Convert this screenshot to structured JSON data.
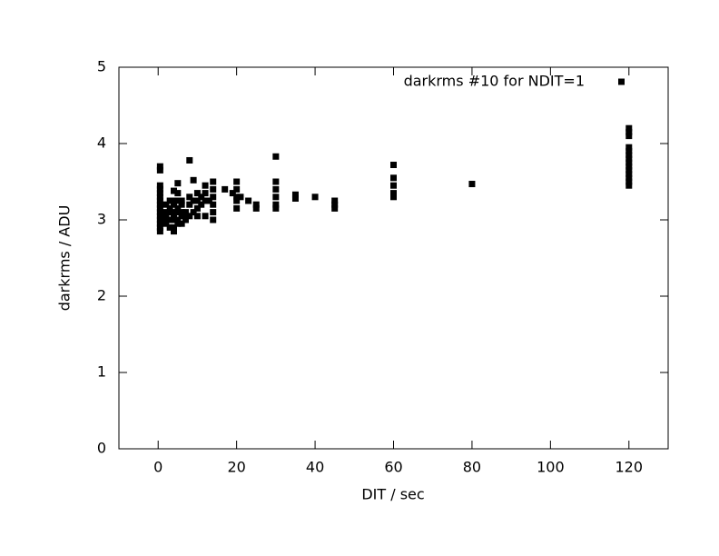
{
  "chart_data": {
    "type": "scatter",
    "xlabel": "DIT / sec",
    "ylabel": "darkrms / ADU",
    "xlim": [
      -10,
      130
    ],
    "xticks": [
      0,
      20,
      40,
      60,
      80,
      100,
      120
    ],
    "ylim": [
      0,
      5
    ],
    "yticks": [
      0,
      1,
      2,
      3,
      4,
      5
    ],
    "legend": "top-right",
    "x": [
      0.5,
      0.5,
      0.5,
      0.5,
      0.5,
      0.5,
      0.5,
      0.5,
      0.5,
      0.5,
      0.5,
      0.5,
      0.5,
      0.5,
      0.5,
      2,
      2,
      2,
      2,
      2,
      3,
      3,
      3,
      3,
      3,
      4,
      4,
      4,
      4,
      4,
      4,
      4,
      4,
      5,
      5,
      5,
      5,
      5,
      5,
      5,
      6,
      6,
      6,
      6,
      6,
      7,
      7,
      7,
      8,
      8,
      8,
      8,
      9,
      9,
      9,
      10,
      10,
      10,
      10,
      11,
      11,
      12,
      12,
      12,
      12,
      13,
      14,
      14,
      14,
      14,
      14,
      14,
      17,
      19,
      20,
      20,
      20,
      20,
      20,
      21,
      23,
      25,
      25,
      30,
      30,
      30,
      30,
      30,
      30,
      35,
      35,
      40,
      45,
      45,
      45,
      60,
      60,
      60,
      60,
      60,
      80,
      120,
      120,
      120,
      120,
      120,
      120,
      120,
      120,
      120,
      120,
      120,
      120,
      120,
      120
    ],
    "series": [
      {
        "name": "darkrms #10 for NDIT=1",
        "color": "#000000",
        "values": [
          2.85,
          2.9,
          2.95,
          3.0,
          3.05,
          3.1,
          3.15,
          3.2,
          3.25,
          3.3,
          3.35,
          3.4,
          3.45,
          3.65,
          3.7,
          2.95,
          3.0,
          3.05,
          3.1,
          3.2,
          2.9,
          3.0,
          3.1,
          3.15,
          3.25,
          2.85,
          2.9,
          3.0,
          3.05,
          3.1,
          3.2,
          3.25,
          3.38,
          2.95,
          3.0,
          3.1,
          3.15,
          3.25,
          3.35,
          3.48,
          2.95,
          3.05,
          3.1,
          3.2,
          3.25,
          3.0,
          3.05,
          3.1,
          3.05,
          3.2,
          3.3,
          3.78,
          3.1,
          3.25,
          3.52,
          3.05,
          3.15,
          3.25,
          3.35,
          3.2,
          3.3,
          3.05,
          3.25,
          3.35,
          3.45,
          3.25,
          3.0,
          3.1,
          3.2,
          3.3,
          3.4,
          3.5,
          3.4,
          3.35,
          3.15,
          3.25,
          3.3,
          3.4,
          3.5,
          3.3,
          3.25,
          3.15,
          3.2,
          3.15,
          3.2,
          3.3,
          3.4,
          3.5,
          3.83,
          3.28,
          3.33,
          3.3,
          3.15,
          3.2,
          3.25,
          3.3,
          3.35,
          3.45,
          3.55,
          3.72,
          3.47,
          3.45,
          3.5,
          3.55,
          3.6,
          3.65,
          3.7,
          3.75,
          3.8,
          3.85,
          3.9,
          3.95,
          4.1,
          4.15,
          4.2
        ]
      }
    ]
  }
}
